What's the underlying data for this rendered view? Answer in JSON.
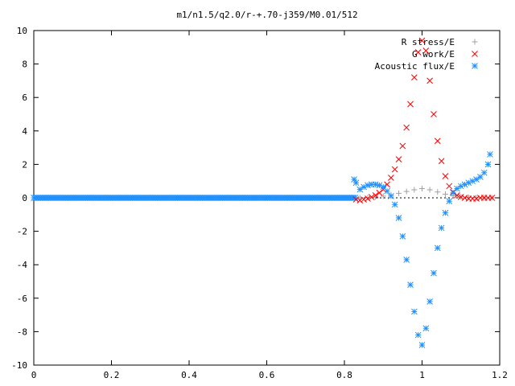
{
  "chart_data": {
    "type": "scatter",
    "title": "m1/n1.5/q2.0/r-+.70-j359/M0.01/512",
    "xlabel": "",
    "ylabel": "",
    "xlim": [
      0,
      1.2
    ],
    "ylim": [
      -10,
      10
    ],
    "x_ticks": [
      "0",
      "0.2",
      "0.4",
      "0.6",
      "0.8",
      "1",
      "1.2"
    ],
    "y_ticks": [
      "10",
      "8",
      "6",
      "4",
      "2",
      "0",
      "-2",
      "-4",
      "-6",
      "-8",
      "-10"
    ],
    "x_tick_values": [
      0,
      0.2,
      0.4,
      0.6,
      0.8,
      1.0,
      1.2
    ],
    "y_tick_values": [
      10,
      8,
      6,
      4,
      2,
      0,
      -2,
      -4,
      -6,
      -8,
      -10
    ],
    "grid": false,
    "legend_position": "top-right",
    "series": [
      {
        "name": "R stress/E",
        "marker": "plus",
        "color": "#a0a0a0",
        "x": [
          0.84,
          0.86,
          0.88,
          0.9,
          0.92,
          0.94,
          0.96,
          0.98,
          1.0,
          1.02,
          1.04,
          1.06,
          1.08,
          1.1,
          1.12,
          1.14,
          1.16,
          1.18
        ],
        "y": [
          0.0,
          0.02,
          0.05,
          0.1,
          0.18,
          0.27,
          0.38,
          0.48,
          0.55,
          0.48,
          0.35,
          0.22,
          0.12,
          0.06,
          0.03,
          0.01,
          0.0,
          0.0
        ]
      },
      {
        "name": "G work/E",
        "marker": "cross",
        "color": "#ff0000",
        "x": [
          0.83,
          0.84,
          0.85,
          0.86,
          0.87,
          0.88,
          0.89,
          0.9,
          0.91,
          0.92,
          0.93,
          0.94,
          0.95,
          0.96,
          0.97,
          0.98,
          0.99,
          1.0,
          1.01,
          1.02,
          1.03,
          1.04,
          1.05,
          1.06,
          1.07,
          1.08,
          1.09,
          1.1,
          1.11,
          1.12,
          1.13,
          1.14,
          1.15,
          1.16,
          1.17,
          1.18
        ],
        "y": [
          -0.1,
          -0.15,
          -0.1,
          -0.05,
          0.05,
          0.15,
          0.3,
          0.5,
          0.8,
          1.2,
          1.7,
          2.3,
          3.1,
          4.2,
          5.6,
          7.2,
          8.7,
          9.4,
          8.8,
          7.0,
          5.0,
          3.4,
          2.2,
          1.3,
          0.7,
          0.35,
          0.15,
          0.05,
          0.0,
          -0.05,
          -0.05,
          -0.05,
          0.0,
          0.0,
          0.0,
          0.0
        ]
      },
      {
        "name": "Acoustic flux/E",
        "marker": "star",
        "color": "#1e90ff",
        "x": [
          0.825,
          0.83,
          0.84,
          0.85,
          0.86,
          0.87,
          0.88,
          0.89,
          0.9,
          0.91,
          0.92,
          0.93,
          0.94,
          0.95,
          0.96,
          0.97,
          0.98,
          0.99,
          1.0,
          1.01,
          1.02,
          1.03,
          1.04,
          1.05,
          1.06,
          1.07,
          1.08,
          1.09,
          1.1,
          1.11,
          1.12,
          1.13,
          1.14,
          1.15,
          1.16,
          1.17,
          1.175
        ],
        "y": [
          1.1,
          0.9,
          0.5,
          0.65,
          0.75,
          0.8,
          0.8,
          0.75,
          0.65,
          0.4,
          0.1,
          -0.4,
          -1.2,
          -2.3,
          -3.7,
          -5.2,
          -6.8,
          -8.2,
          -8.8,
          -7.8,
          -6.2,
          -4.5,
          -3.0,
          -1.8,
          -0.9,
          -0.2,
          0.3,
          0.55,
          0.7,
          0.8,
          0.9,
          1.0,
          1.1,
          1.25,
          1.5,
          2.0,
          2.6
        ]
      }
    ]
  }
}
